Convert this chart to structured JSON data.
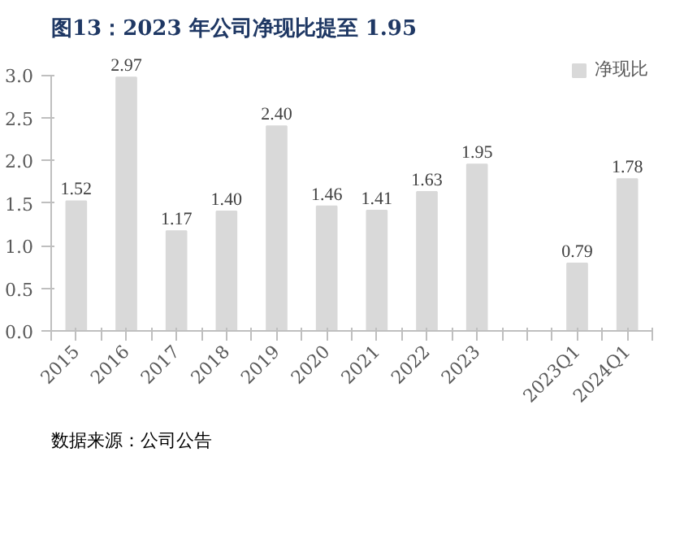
{
  "chart_data": {
    "type": "bar",
    "title": "图13：2023 年公司净现比提至 1.95",
    "categories": [
      "2015",
      "2016",
      "2017",
      "2018",
      "2019",
      "2020",
      "2021",
      "2022",
      "2023",
      null,
      "2023Q1",
      "2024Q1"
    ],
    "series": [
      {
        "name": "净现比",
        "color": "#d9d9d9",
        "values": [
          1.52,
          2.97,
          1.17,
          1.4,
          2.4,
          1.46,
          1.41,
          1.63,
          1.95,
          null,
          0.79,
          1.78
        ],
        "value_labels": [
          "1.52",
          "2.97",
          "1.17",
          "1.40",
          "2.40",
          "1.46",
          "1.41",
          "1.63",
          "1.95",
          null,
          "0.79",
          "1.78"
        ]
      }
    ],
    "ylim": [
      0,
      3
    ],
    "yticks": [
      {
        "value": 0,
        "label": "0.0"
      },
      {
        "value": 0.5,
        "label": "0.5"
      },
      {
        "value": 1,
        "label": "1.0"
      },
      {
        "value": 1.5,
        "label": "1.5"
      },
      {
        "value": 2,
        "label": "2.0"
      },
      {
        "value": 2.5,
        "label": "2.5"
      },
      {
        "value": 3,
        "label": "3.0"
      }
    ],
    "grid": false,
    "legend": "top right",
    "annotations": [
      "数据来源：公司公告"
    ]
  }
}
